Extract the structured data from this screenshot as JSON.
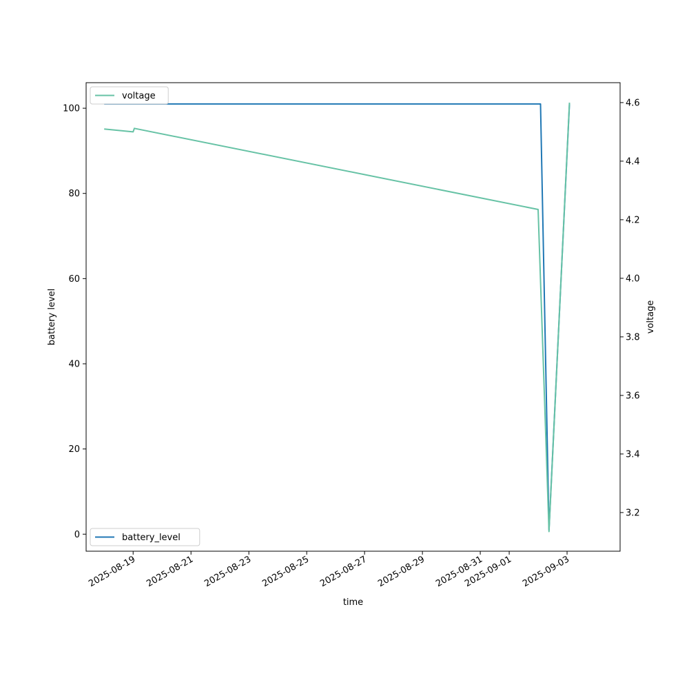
{
  "chart_data": {
    "type": "line",
    "title": "",
    "xlabel": "time",
    "ylabel_left": "battery level",
    "ylabel_right": "voltage",
    "x_tick_labels": [
      "2025-08-19",
      "2025-08-21",
      "2025-08-23",
      "2025-08-25",
      "2025-08-27",
      "2025-08-29",
      "2025-08-31",
      "2025-09-01",
      "2025-09-03"
    ],
    "y_left_ticks": [
      0,
      20,
      40,
      60,
      80,
      100
    ],
    "y_right_ticks": [
      3.2,
      3.4,
      3.6,
      3.8,
      4.0,
      4.2,
      4.4,
      4.6
    ],
    "xlim": [
      "2025-08-17 09:00",
      "2025-09-04 20:00"
    ],
    "ylim_left": [
      -4,
      106
    ],
    "ylim_right": [
      3.068,
      4.668
    ],
    "grid": false,
    "series": [
      {
        "name": "battery_level",
        "axis": "left",
        "color": "#1f77b4",
        "legend_position": "lower left",
        "points": [
          {
            "x": "2025-08-18 00:00",
            "y": 101
          },
          {
            "x": "2025-09-02 02:00",
            "y": 101
          },
          {
            "x": "2025-09-02 09:00",
            "y": 1
          },
          {
            "x": "2025-09-03 02:00",
            "y": 101
          }
        ]
      },
      {
        "name": "voltage",
        "axis": "right",
        "color": "#66c2a5",
        "legend_position": "upper left",
        "points": [
          {
            "x": "2025-08-18 00:00",
            "y": 4.51
          },
          {
            "x": "2025-08-19 00:00",
            "y": 4.5
          },
          {
            "x": "2025-08-19 01:00",
            "y": 4.512
          },
          {
            "x": "2025-09-02 00:00",
            "y": 4.235
          },
          {
            "x": "2025-09-02 09:00",
            "y": 3.135
          },
          {
            "x": "2025-09-03 02:00",
            "y": 4.6
          }
        ]
      }
    ]
  }
}
